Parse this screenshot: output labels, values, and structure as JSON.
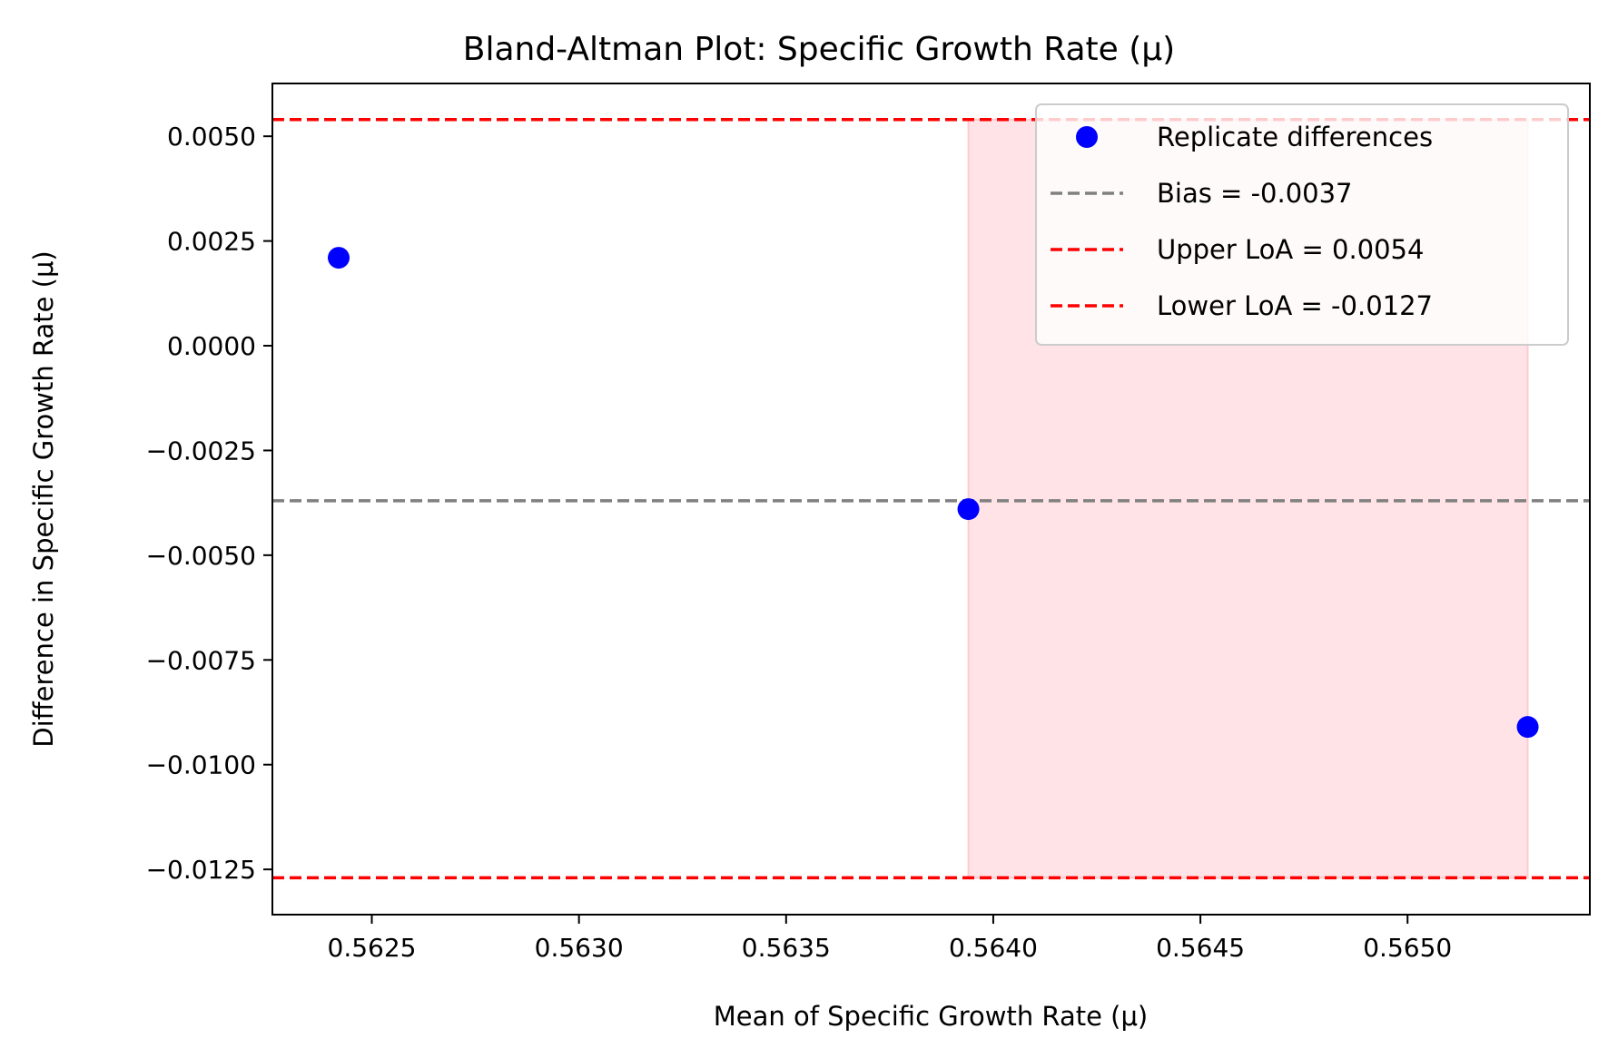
{
  "chart_data": {
    "type": "scatter",
    "title": "Bland-Altman Plot: Specific Growth Rate (μ)",
    "xlabel": "Mean of Specific Growth Rate (μ)",
    "ylabel": "Difference in Specific Growth Rate (μ)",
    "xlim": [
      0.56226,
      0.56544
    ],
    "ylim": [
      -0.01358,
      0.00626
    ],
    "xticks": [
      0.5625,
      0.563,
      0.5635,
      0.564,
      0.5645,
      0.565
    ],
    "xtick_labels": [
      "0.5625",
      "0.5630",
      "0.5635",
      "0.5640",
      "0.5645",
      "0.5650"
    ],
    "yticks": [
      0.005,
      0.0025,
      0.0,
      -0.0025,
      -0.005,
      -0.0075,
      -0.01,
      -0.0125
    ],
    "ytick_labels": [
      "0.0050",
      "0.0025",
      "0.0000",
      "−0.0025",
      "−0.0050",
      "−0.0075",
      "−0.0100",
      "−0.0125"
    ],
    "grid": false,
    "legend_position": "top-right",
    "series": [
      {
        "name": "Replicate differences",
        "color": "#0000ff",
        "x": [
          0.56242,
          0.56394,
          0.56529
        ],
        "y": [
          0.0021,
          -0.0039,
          -0.0091
        ]
      }
    ],
    "reference_lines": [
      {
        "name": "Bias = -0.0037",
        "y": -0.0037,
        "color": "#808080",
        "style": "dashed"
      },
      {
        "name": "Upper LoA = 0.0054",
        "y": 0.0054,
        "color": "#ff0000",
        "style": "dashed"
      },
      {
        "name": "Lower LoA = -0.0127",
        "y": -0.0127,
        "color": "#ff0000",
        "style": "dashed"
      }
    ],
    "shaded_region": {
      "x": [
        0.56394,
        0.56529
      ],
      "y": [
        -0.0127,
        0.0054
      ],
      "color": "#ffc0c8"
    }
  }
}
